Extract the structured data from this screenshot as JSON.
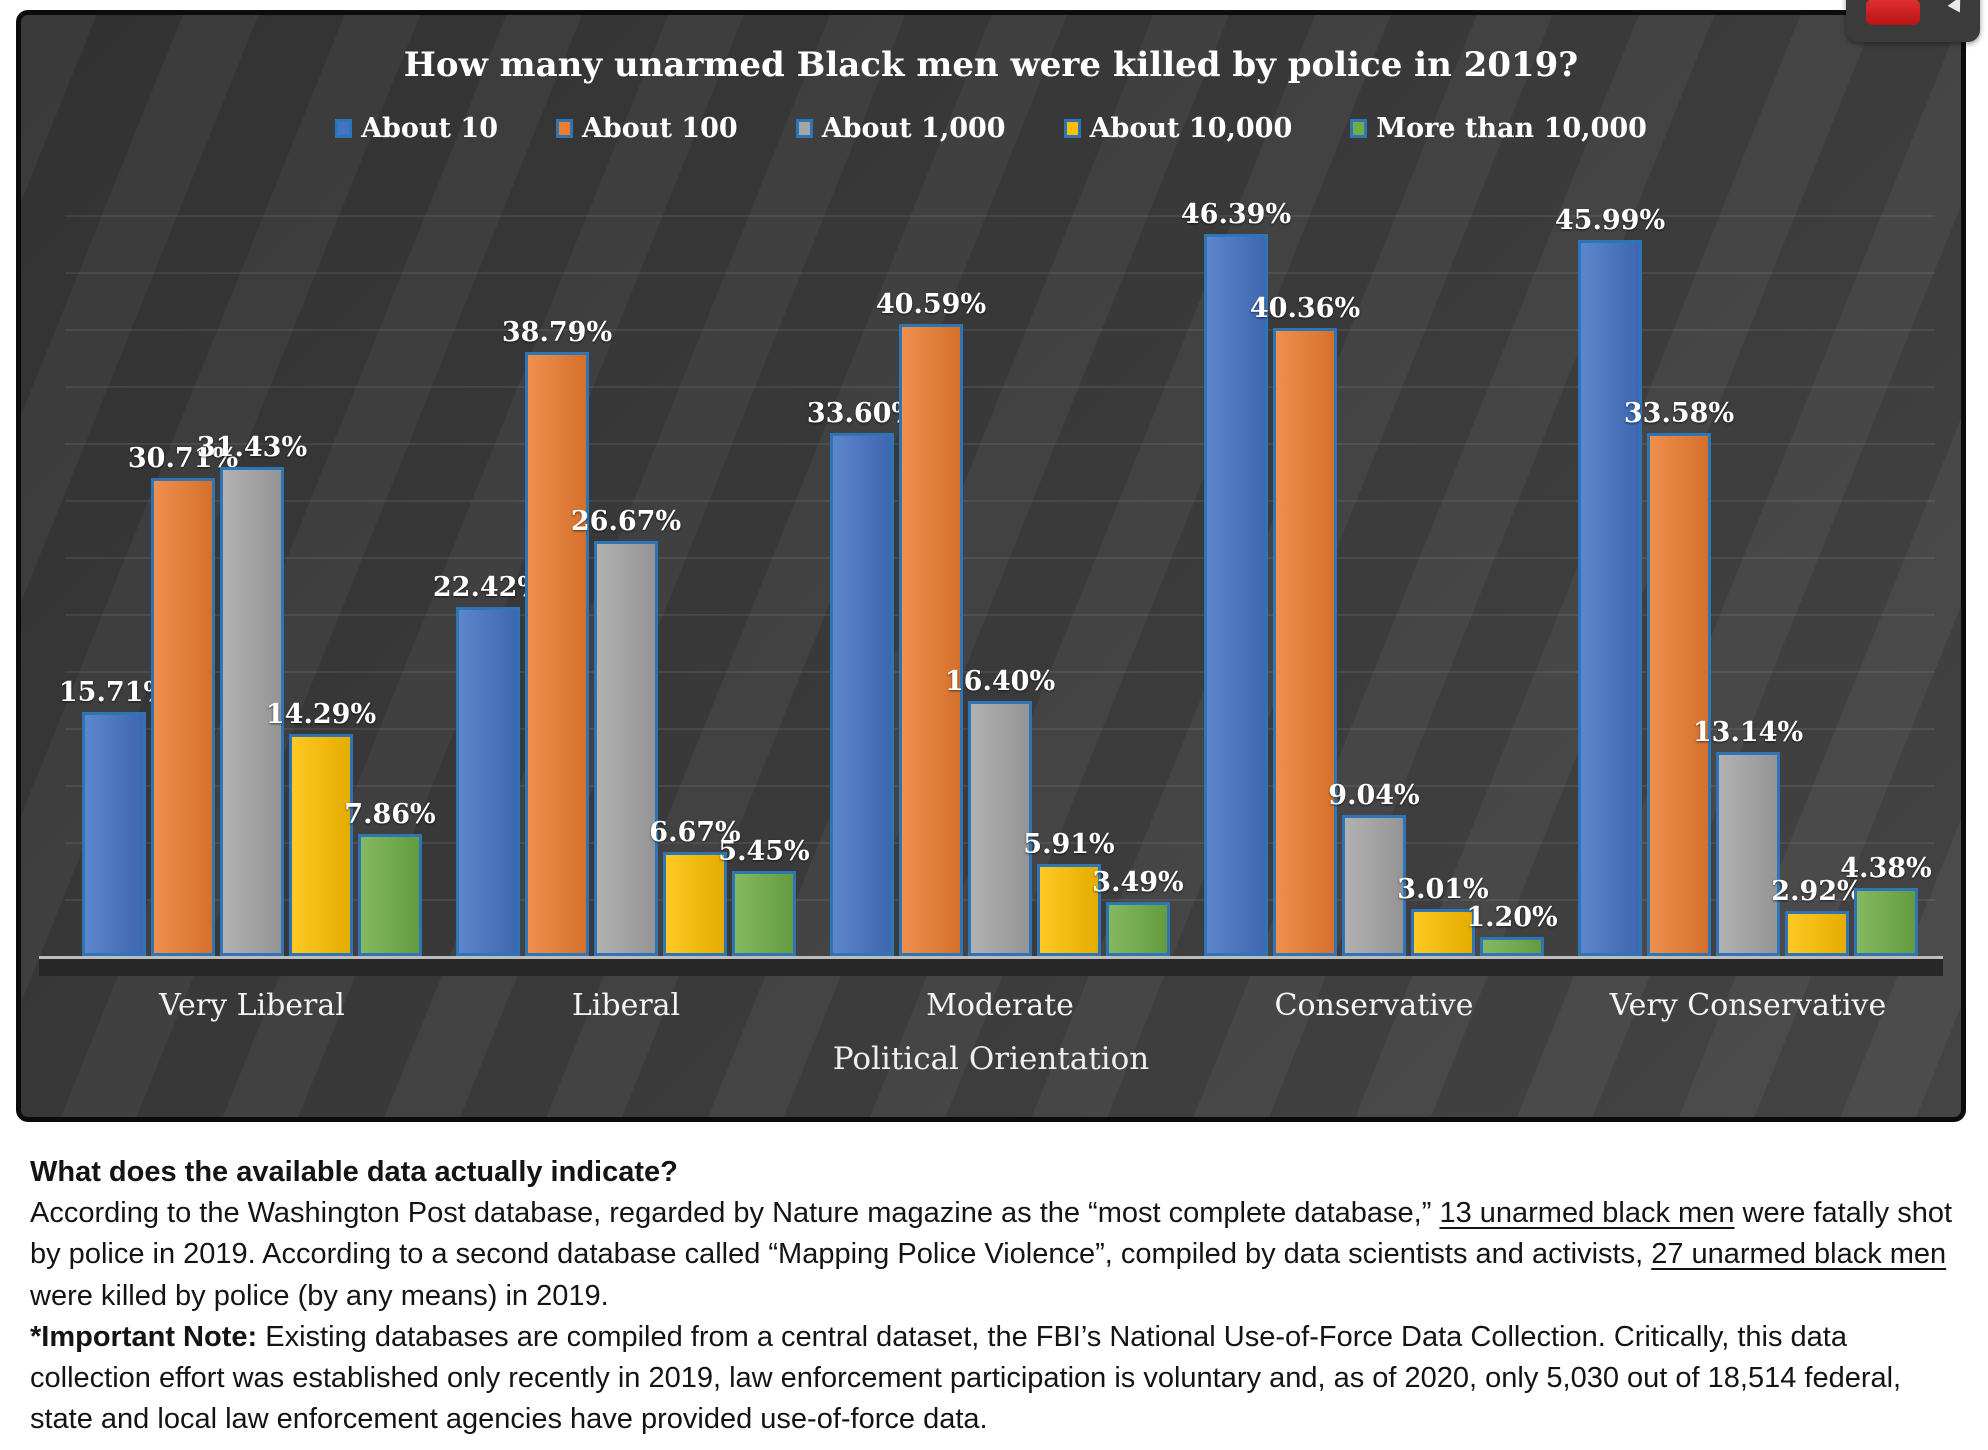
{
  "chart_data": {
    "type": "bar",
    "title": "How many unarmed Black men were killed by police in 2019?",
    "xlabel": "Political Orientation",
    "ylabel": "",
    "ylim": [
      0,
      50
    ],
    "grid": true,
    "legend_position": "top",
    "value_suffix": "%",
    "bar_border_color": "#2E75B6",
    "categories": [
      "Very Liberal",
      "Liberal",
      "Moderate",
      "Conservative",
      "Very Conservative"
    ],
    "series": [
      {
        "name": "About 10",
        "color": "#4472C4",
        "values": [
          15.71,
          22.42,
          33.6,
          46.39,
          45.99
        ]
      },
      {
        "name": "About 100",
        "color": "#ED7D31",
        "values": [
          30.71,
          38.79,
          40.59,
          40.36,
          33.58
        ]
      },
      {
        "name": "About 1,000",
        "color": "#A5A5A5",
        "values": [
          31.43,
          26.67,
          16.4,
          9.04,
          13.14
        ]
      },
      {
        "name": "About 10,000",
        "color": "#FFC000",
        "values": [
          14.29,
          6.67,
          5.91,
          3.01,
          2.92
        ]
      },
      {
        "name": "More than 10,000",
        "color": "#70AD47",
        "values": [
          7.86,
          5.45,
          3.49,
          1.2,
          4.38
        ]
      }
    ]
  },
  "video_overlay": {
    "badge_color": "#b81414"
  },
  "article": {
    "heading": "What does the available data actually indicate?",
    "paragraphs": [
      {
        "segments": [
          {
            "style": "normal",
            "text": "According to the Washington Post database, regarded by Nature magazine as the “most complete database,” "
          },
          {
            "style": "underline",
            "text": "13 unarmed black men"
          },
          {
            "style": "normal",
            "text": " were fatally shot by police in 2019. According to a second database called “Mapping Police Violence”, compiled by data scientists and activists, "
          },
          {
            "style": "underline",
            "text": "27 unarmed black men"
          },
          {
            "style": "normal",
            "text": " were killed by police (by any means) in 2019."
          }
        ]
      },
      {
        "segments": [
          {
            "style": "bold",
            "text": "*Important Note:"
          },
          {
            "style": "normal",
            "text": " Existing databases are compiled from a central dataset, the FBI’s National Use-of-Force Data Collection. Critically, this data collection effort was established only recently in 2019, law enforcement participation is voluntary and, as of 2020, only 5,030 out of 18,514 federal, state and local law enforcement agencies have provided use-of-force data."
          }
        ]
      }
    ]
  }
}
